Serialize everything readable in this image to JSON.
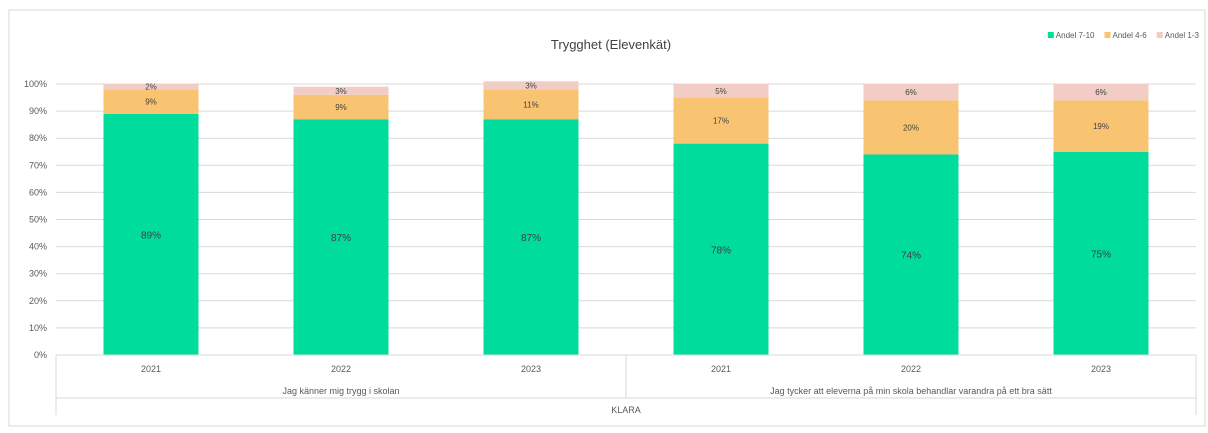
{
  "chart_data": {
    "type": "bar",
    "stacked": true,
    "percent": true,
    "title": "Trygghet (Elevenkät)",
    "categories": [
      "2021",
      "2022",
      "2023",
      "2021",
      "2022",
      "2023"
    ],
    "groups": [
      {
        "label": "Jag känner mig trygg i skolan",
        "span": [
          0,
          2
        ]
      },
      {
        "label": "Jag tycker att eleverna på min skola behandlar varandra på ett bra sätt",
        "span": [
          3,
          5
        ]
      }
    ],
    "outer_label": "KLARA",
    "series": [
      {
        "name": "Andel 7-10",
        "color": "#00DC9C",
        "values": [
          89,
          87,
          87,
          78,
          74,
          75
        ],
        "labels": [
          "89%",
          "87%",
          "87%",
          "78%",
          "74%",
          "75%"
        ]
      },
      {
        "name": "Andel 4-6",
        "color": "#F8C471",
        "values": [
          9,
          9,
          11,
          17,
          20,
          19
        ],
        "labels": [
          "9%",
          "9%",
          "11%",
          "17%",
          "20%",
          "19%"
        ]
      },
      {
        "name": "Andel 1-3",
        "color": "#F2CDC6",
        "values": [
          2,
          3,
          3,
          5,
          6,
          6
        ],
        "labels": [
          "2%",
          "3%",
          "3%",
          "5%",
          "6%",
          "6%"
        ]
      }
    ],
    "ylim": [
      0,
      100
    ],
    "yticks": [
      "0%",
      "10%",
      "20%",
      "30%",
      "40%",
      "50%",
      "60%",
      "70%",
      "80%",
      "90%",
      "100%"
    ],
    "grid": true,
    "legend_position": "top-right"
  }
}
